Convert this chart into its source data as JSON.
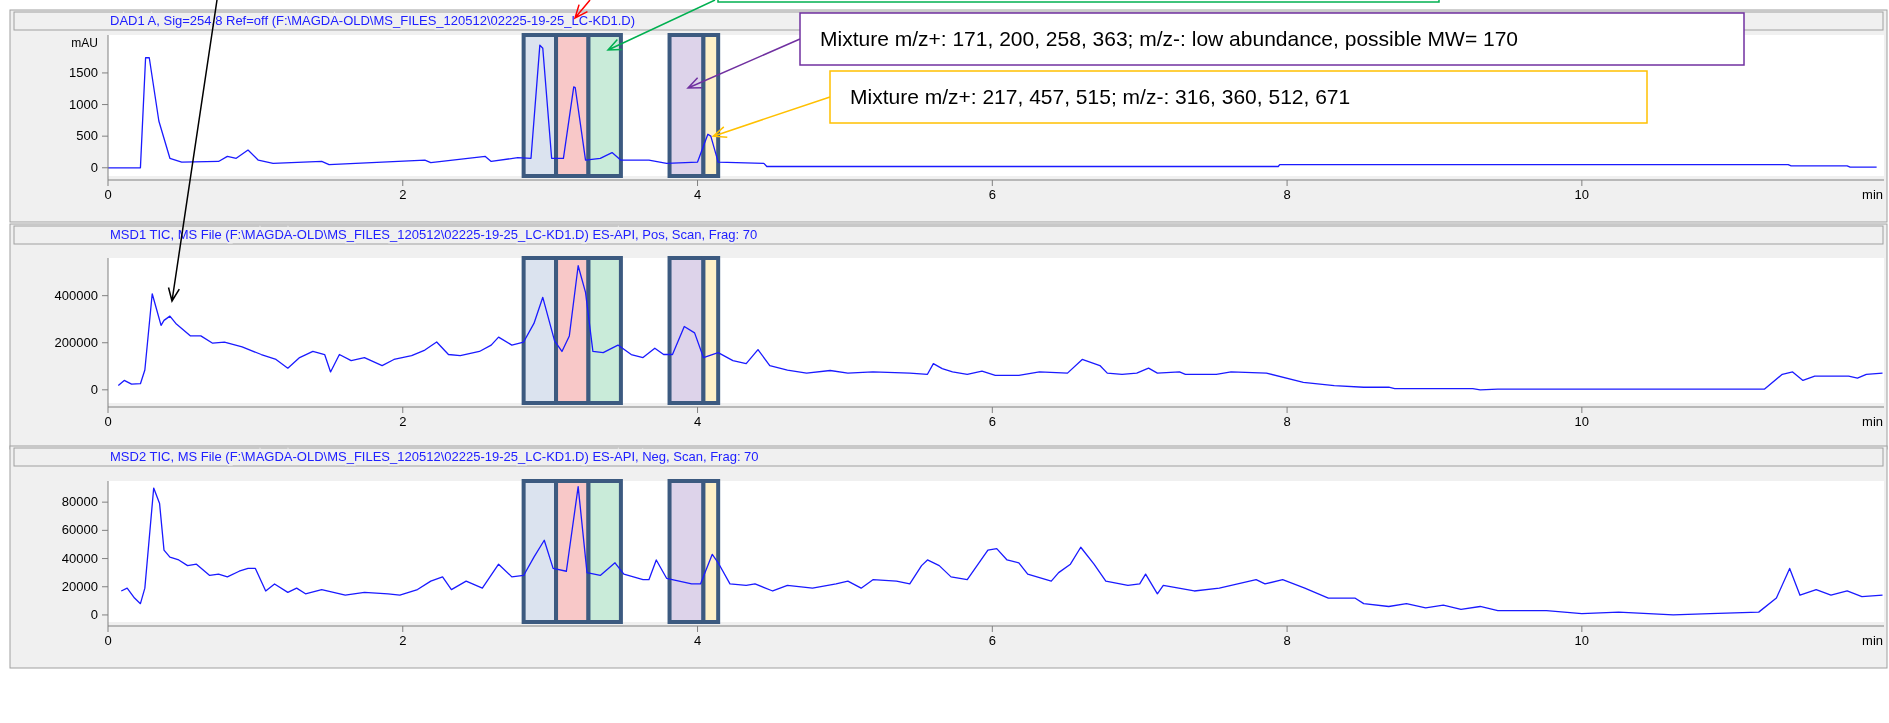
{
  "chart_data": [
    {
      "type": "line",
      "title": "DAD1 A, Sig=254,8 Ref=off (F:\\MAGDA-OLD\\MS_FILES_120512\\02225-19-25_LC-KD1.D)",
      "ylabel": "mAU",
      "xlabel": "min",
      "xlim": [
        0,
        12.05
      ],
      "xticks": [
        0,
        2,
        4,
        6,
        8,
        10
      ],
      "ylim": [
        -130,
        2100
      ],
      "yticks": [
        0,
        500,
        1000,
        1500
      ],
      "grid": false,
      "marker": "none",
      "x": [
        0,
        0.22,
        0.255,
        0.28,
        0.345,
        0.42,
        0.5,
        0.75,
        0.81,
        0.87,
        0.95,
        1.02,
        1.12,
        1.45,
        1.5,
        2.15,
        2.19,
        2.56,
        2.6,
        2.78,
        2.87,
        2.93,
        2.95,
        3.01,
        3.09,
        3.16,
        3.17,
        3.24,
        3.34,
        3.42,
        3.48,
        3.67,
        3.79,
        4.0,
        4.07,
        4.09,
        4.14,
        4.45,
        4.47,
        7.94,
        7.95,
        11.4,
        11.42,
        11.8,
        11.82,
        12.0
      ],
      "series": [
        {
          "color": "#1a1aff",
          "values": [
            0,
            0,
            1740,
            1740,
            740,
            150,
            90,
            100,
            180,
            150,
            280,
            120,
            70,
            100,
            50,
            120,
            80,
            180,
            100,
            160,
            150,
            1940,
            1890,
            150,
            150,
            1280,
            1270,
            120,
            150,
            240,
            120,
            120,
            70,
            90,
            530,
            500,
            90,
            70,
            20,
            20,
            50,
            50,
            30,
            30,
            10,
            10
          ]
        }
      ],
      "bands": [
        {
          "axis": "x",
          "from": 2.82,
          "to": 3.04,
          "color": "#dbe3ef"
        },
        {
          "axis": "x",
          "from": 3.04,
          "to": 3.26,
          "color": "#f8c8c8"
        },
        {
          "axis": "x",
          "from": 3.26,
          "to": 3.48,
          "color": "#c9ebd9"
        },
        {
          "axis": "x",
          "from": 3.81,
          "to": 4.04,
          "color": "#ddd3ea"
        },
        {
          "axis": "x",
          "from": 4.04,
          "to": 4.14,
          "color": "#fdf0c8"
        }
      ],
      "annotations": [
        "Mixture m/z+: 171, 200, 258, 363; m/z-: low abundance, possible MW= 170",
        {
          "text": "Mixture m/z+: 217, 457, 515; m/z-: 316, 360, 512, 671",
          "x": 4.08,
          "y": 500
        }
      ]
    },
    {
      "type": "line",
      "title": "MSD1 TIC, MS File (F:\\MAGDA-OLD\\MS_FILES_120512\\02225-19-25_LC-KD1.D)   ES-API, Pos, Scan, Frag: 70",
      "xlabel": "min",
      "xlim": [
        0,
        12.05
      ],
      "xticks": [
        0,
        2,
        4,
        6,
        8,
        10
      ],
      "ylim": [
        -56000,
        560000
      ],
      "yticks": [
        0,
        200000,
        400000
      ],
      "grid": false,
      "marker": "none",
      "x": [
        0.07,
        0.11,
        0.16,
        0.22,
        0.25,
        0.3,
        0.36,
        0.38,
        0.42,
        0.46,
        0.5,
        0.56,
        0.63,
        0.71,
        0.79,
        0.91,
        1.04,
        1.14,
        1.22,
        1.3,
        1.39,
        1.47,
        1.51,
        1.57,
        1.65,
        1.74,
        1.86,
        1.94,
        2.06,
        2.15,
        2.23,
        2.31,
        2.39,
        2.52,
        2.6,
        2.65,
        2.74,
        2.82,
        2.89,
        2.95,
        3.03,
        3.08,
        3.13,
        3.19,
        3.24,
        3.29,
        3.36,
        3.46,
        3.55,
        3.63,
        3.71,
        3.77,
        3.83,
        3.91,
        3.98,
        4.04,
        4.14,
        4.24,
        4.33,
        4.41,
        4.49,
        4.61,
        4.74,
        4.9,
        5.02,
        5.19,
        5.44,
        5.56,
        5.6,
        5.66,
        5.73,
        5.83,
        5.93,
        6.02,
        6.18,
        6.32,
        6.51,
        6.61,
        6.73,
        6.78,
        6.88,
        6.98,
        7.06,
        7.12,
        7.27,
        7.31,
        7.52,
        7.62,
        7.86,
        8.11,
        8.32,
        8.52,
        8.69,
        8.73,
        9.26,
        9.31,
        9.43,
        11.24,
        11.36,
        11.43,
        11.5,
        11.58,
        11.81,
        11.87,
        11.93,
        12.04
      ],
      "series": [
        {
          "color": "#1a1aff",
          "values": [
            18000,
            40000,
            24000,
            26000,
            84000,
            408000,
            274000,
            295000,
            313000,
            282000,
            261000,
            229000,
            229000,
            198000,
            203000,
            182000,
            150000,
            129000,
            92000,
            137000,
            163000,
            150000,
            76000,
            150000,
            124000,
            137000,
            103000,
            129000,
            145000,
            169000,
            203000,
            150000,
            145000,
            163000,
            190000,
            224000,
            190000,
            203000,
            282000,
            393000,
            208000,
            163000,
            229000,
            527000,
            414000,
            163000,
            158000,
            190000,
            150000,
            137000,
            177000,
            150000,
            150000,
            269000,
            242000,
            137000,
            158000,
            124000,
            111000,
            171000,
            103000,
            84000,
            71000,
            82000,
            71000,
            76000,
            71000,
            66000,
            111000,
            90000,
            76000,
            66000,
            79000,
            61000,
            61000,
            76000,
            71000,
            129000,
            103000,
            71000,
            66000,
            71000,
            92000,
            71000,
            76000,
            66000,
            66000,
            76000,
            71000,
            32000,
            18000,
            11000,
            11000,
            5000,
            5000,
            0,
            3000,
            3000,
            66000,
            76000,
            40000,
            58000,
            58000,
            50000,
            66000,
            71000
          ]
        }
      ],
      "bands": [
        {
          "axis": "x",
          "from": 2.82,
          "to": 3.04,
          "color": "#dbe3ef"
        },
        {
          "axis": "x",
          "from": 3.04,
          "to": 3.26,
          "color": "#f8c8c8"
        },
        {
          "axis": "x",
          "from": 3.26,
          "to": 3.48,
          "color": "#c9ebd9"
        },
        {
          "axis": "x",
          "from": 3.81,
          "to": 4.04,
          "color": "#ddd3ea"
        },
        {
          "axis": "x",
          "from": 4.04,
          "to": 4.14,
          "color": "#fdf0c8"
        }
      ]
    },
    {
      "type": "line",
      "title": "MSD2 TIC, MS File (F:\\MAGDA-OLD\\MS_FILES_120512\\02225-19-25_LC-KD1.D)   ES-API, Neg, Scan, Frag: 70",
      "xlabel": "min",
      "xlim": [
        0,
        12.05
      ],
      "xticks": [
        0,
        2,
        4,
        6,
        8,
        10
      ],
      "ylim": [
        -5000,
        95000
      ],
      "yticks": [
        0,
        20000,
        40000,
        60000,
        80000
      ],
      "grid": false,
      "marker": "none",
      "x": [
        0.09,
        0.13,
        0.18,
        0.22,
        0.25,
        0.31,
        0.35,
        0.38,
        0.42,
        0.48,
        0.54,
        0.6,
        0.69,
        0.75,
        0.81,
        0.89,
        0.95,
        1.0,
        1.07,
        1.13,
        1.22,
        1.28,
        1.34,
        1.45,
        1.61,
        1.74,
        1.9,
        1.98,
        2.1,
        2.19,
        2.27,
        2.33,
        2.43,
        2.54,
        2.65,
        2.74,
        2.82,
        2.89,
        2.96,
        3.02,
        3.11,
        3.19,
        3.25,
        3.34,
        3.44,
        3.5,
        3.63,
        3.67,
        3.72,
        3.79,
        3.96,
        4.02,
        4.1,
        4.14,
        4.22,
        4.33,
        4.39,
        4.51,
        4.61,
        4.78,
        4.94,
        5.02,
        5.11,
        5.19,
        5.35,
        5.44,
        5.52,
        5.56,
        5.64,
        5.72,
        5.83,
        5.97,
        6.03,
        6.1,
        6.18,
        6.24,
        6.4,
        6.45,
        6.53,
        6.6,
        6.69,
        6.77,
        6.92,
        7.0,
        7.04,
        7.12,
        7.16,
        7.37,
        7.54,
        7.79,
        7.85,
        7.97,
        8.12,
        8.28,
        8.46,
        8.52,
        8.69,
        8.81,
        8.94,
        9.06,
        9.18,
        9.31,
        9.43,
        9.76,
        10.0,
        10.25,
        10.62,
        10.87,
        11.2,
        11.32,
        11.41,
        11.48,
        11.59,
        11.69,
        11.8,
        11.9,
        12.04
      ],
      "series": [
        {
          "color": "#1a1aff",
          "values": [
            17000,
            19000,
            12000,
            8000,
            19000,
            90000,
            79000,
            46000,
            41000,
            39000,
            35000,
            36000,
            28000,
            29000,
            27000,
            31000,
            33000,
            33000,
            17000,
            22000,
            16000,
            19000,
            15000,
            18000,
            14000,
            16000,
            15000,
            14000,
            18000,
            24000,
            27000,
            18000,
            24000,
            19000,
            36000,
            27000,
            28000,
            41000,
            53000,
            33000,
            31000,
            91000,
            30000,
            28000,
            37000,
            29000,
            25000,
            25000,
            39000,
            26000,
            22000,
            22000,
            43000,
            37000,
            22000,
            21000,
            22000,
            17000,
            21000,
            19000,
            22000,
            24000,
            19000,
            25000,
            24000,
            22000,
            35000,
            39000,
            35000,
            27000,
            25000,
            46000,
            47000,
            39000,
            37000,
            29000,
            24000,
            30000,
            36000,
            48000,
            36000,
            24000,
            21000,
            22000,
            29000,
            15000,
            21000,
            17000,
            19000,
            25000,
            22000,
            25000,
            19000,
            12000,
            12000,
            8000,
            6000,
            8000,
            5000,
            7000,
            4000,
            6000,
            3000,
            3000,
            1000,
            2000,
            0,
            1000,
            2000,
            12000,
            33000,
            14000,
            18000,
            14000,
            17000,
            13000,
            14000
          ]
        }
      ],
      "bands": [
        {
          "axis": "x",
          "from": 2.82,
          "to": 3.04,
          "color": "#dbe3ef"
        },
        {
          "axis": "x",
          "from": 3.04,
          "to": 3.26,
          "color": "#f8c8c8"
        },
        {
          "axis": "x",
          "from": 3.26,
          "to": 3.48,
          "color": "#c9ebd9"
        },
        {
          "axis": "x",
          "from": 3.81,
          "to": 4.04,
          "color": "#ddd3ea"
        },
        {
          "axis": "x",
          "from": 4.04,
          "to": 4.14,
          "color": "#fdf0c8"
        }
      ]
    }
  ]
}
